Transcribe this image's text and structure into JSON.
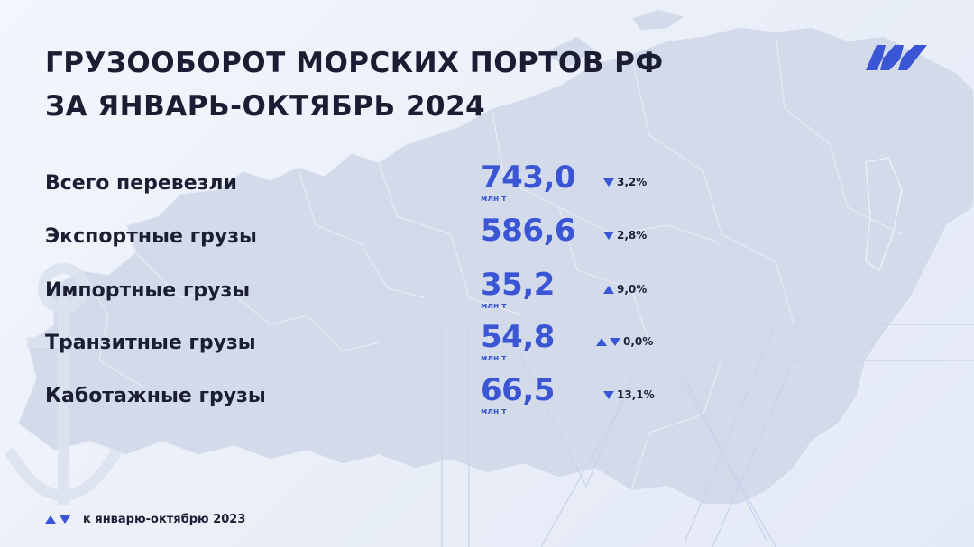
{
  "header": {
    "title_line1": "ГРУЗООБОРОТ МОРСКИХ ПОРТОВ РФ",
    "title_line2": "ЗА ЯНВАРЬ-ОКТЯБРЬ 2024"
  },
  "rows": [
    {
      "label": "Всего перевезли",
      "value": "743,0",
      "unit": "млн т",
      "change": "3,2%",
      "direction": "down"
    },
    {
      "label": "Экспортные грузы",
      "value": "586,6",
      "unit": "",
      "change": "2,8%",
      "direction": "down"
    },
    {
      "label": "Импортные грузы",
      "value": "35,2",
      "unit": "млн т",
      "change": "9,0%",
      "direction": "up"
    },
    {
      "label": "Транзитные грузы",
      "value": "54,8",
      "unit": "млн т",
      "change": "0,0%",
      "direction": "both"
    },
    {
      "label": "Каботажные грузы",
      "value": "66,5",
      "unit": "млн т",
      "change": "13,1%",
      "direction": "down"
    }
  ],
  "legend": {
    "text": "к январю-октябрю 2023"
  },
  "colors": {
    "accent": "#3a56d4",
    "text": "#1c1f33",
    "map": "#cfd8ea"
  }
}
